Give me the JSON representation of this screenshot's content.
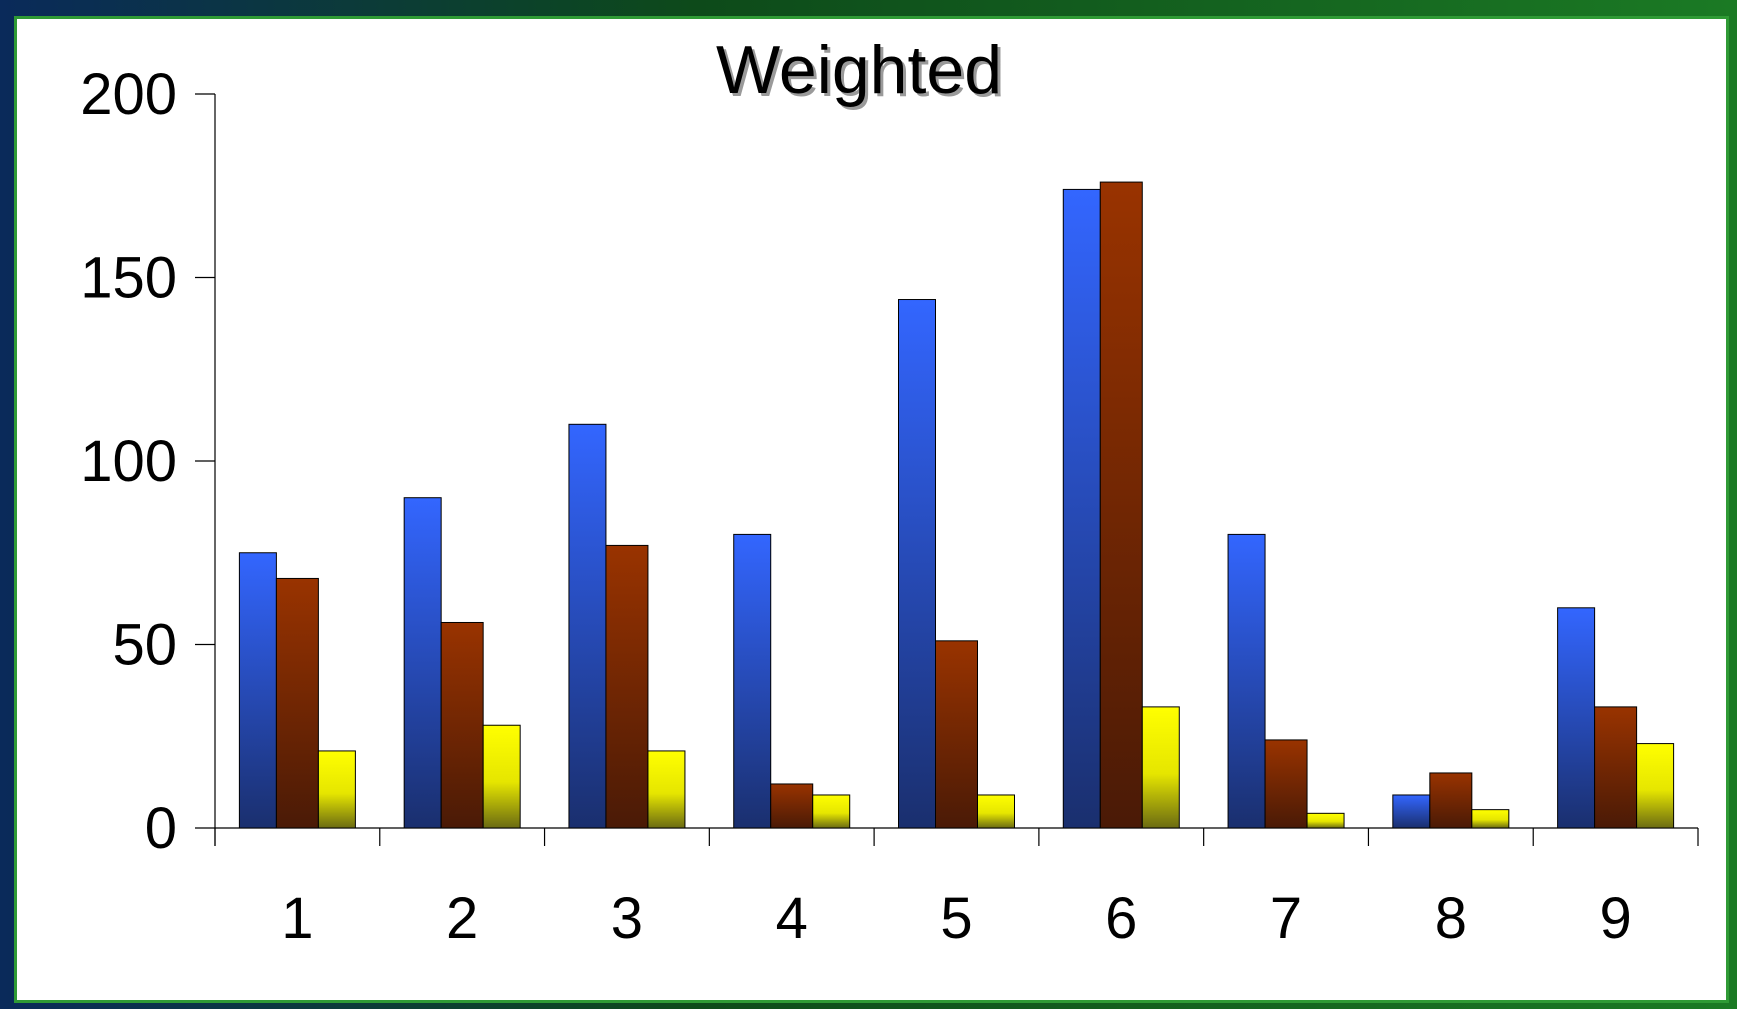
{
  "chart_data": {
    "type": "bar",
    "title": "Weighted",
    "xlabel": "",
    "ylabel": "",
    "categories": [
      "1",
      "2",
      "3",
      "4",
      "5",
      "6",
      "7",
      "8",
      "9"
    ],
    "series": [
      {
        "color": "#3366ff",
        "values": [
          75,
          90,
          110,
          80,
          144,
          174,
          80,
          9,
          60
        ]
      },
      {
        "color": "#993300",
        "values": [
          68,
          56,
          77,
          12,
          51,
          176,
          24,
          15,
          33
        ]
      },
      {
        "color": "#ffff00",
        "values": [
          21,
          28,
          21,
          9,
          9,
          33,
          4,
          5,
          23
        ]
      }
    ],
    "ylim": [
      0,
      200
    ],
    "yticks": [
      "0",
      "50",
      "100",
      "150",
      "200"
    ],
    "grid": false,
    "legend": "none"
  }
}
